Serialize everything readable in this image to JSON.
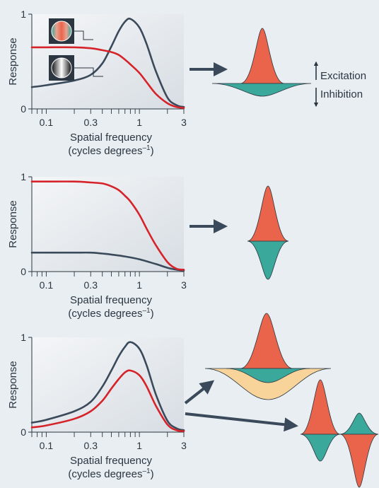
{
  "panel_labels": {
    "ylabel": "Response",
    "xlabel_line1": "Spatial frequency",
    "xlabel_line2": "(cycles degrees",
    "xlabel_sup": "–1",
    "xlabel_close": ")",
    "y_ticks": [
      "0",
      "1"
    ],
    "x_ticks": [
      "0.1",
      "0.3",
      "1",
      "3"
    ]
  },
  "legend": {
    "excitation": "Excitation",
    "inhibition": "Inhibition"
  },
  "colors": {
    "color_curve": "#d6232a",
    "luminance_curve": "#3a4a5a",
    "excitation": "#e9644a",
    "inhibition": "#3aa89a",
    "broad_inhibition": "#f9d49a",
    "arrow": "#3a4a5a"
  },
  "icons": [
    "color-grating-icon",
    "luminance-grating-icon"
  ],
  "chart_data": [
    {
      "type": "line",
      "x_scale": "log",
      "xlim": [
        0.07,
        3
      ],
      "ylim": [
        0,
        1
      ],
      "series": [
        {
          "color": "#3a4a5a",
          "x": [
            0.07,
            0.1,
            0.2,
            0.3,
            0.4,
            0.5,
            0.6,
            0.7,
            0.8,
            1.0,
            1.2,
            1.5,
            2.0,
            2.5,
            3.0
          ],
          "values": [
            0.23,
            0.25,
            0.3,
            0.36,
            0.48,
            0.66,
            0.82,
            0.92,
            0.95,
            0.86,
            0.68,
            0.4,
            0.12,
            0.04,
            0.02
          ]
        },
        {
          "color": "#d6232a",
          "x": [
            0.07,
            0.1,
            0.2,
            0.3,
            0.4,
            0.5,
            0.6,
            0.7,
            0.8,
            1.0,
            1.2,
            1.5,
            2.0,
            2.5,
            3.0
          ],
          "values": [
            0.65,
            0.65,
            0.65,
            0.64,
            0.62,
            0.6,
            0.57,
            0.52,
            0.47,
            0.38,
            0.28,
            0.16,
            0.06,
            0.02,
            0.01
          ]
        }
      ]
    },
    {
      "type": "line",
      "x_scale": "log",
      "xlim": [
        0.07,
        3
      ],
      "ylim": [
        0,
        1
      ],
      "series": [
        {
          "color": "#3a4a5a",
          "x": [
            0.07,
            0.1,
            0.2,
            0.3,
            0.4,
            0.5,
            0.7,
            1.0,
            1.5,
            2.0,
            2.5,
            3.0
          ],
          "values": [
            0.2,
            0.2,
            0.2,
            0.2,
            0.19,
            0.18,
            0.16,
            0.13,
            0.08,
            0.04,
            0.02,
            0.01
          ]
        },
        {
          "color": "#d6232a",
          "x": [
            0.07,
            0.1,
            0.2,
            0.3,
            0.4,
            0.5,
            0.6,
            0.7,
            0.8,
            1.0,
            1.2,
            1.5,
            2.0,
            2.5,
            3.0
          ],
          "values": [
            0.95,
            0.95,
            0.95,
            0.94,
            0.93,
            0.9,
            0.86,
            0.8,
            0.74,
            0.6,
            0.45,
            0.28,
            0.1,
            0.03,
            0.02
          ]
        }
      ]
    },
    {
      "type": "line",
      "x_scale": "log",
      "xlim": [
        0.07,
        3
      ],
      "ylim": [
        0,
        1
      ],
      "series": [
        {
          "color": "#3a4a5a",
          "x": [
            0.07,
            0.1,
            0.2,
            0.3,
            0.4,
            0.5,
            0.6,
            0.7,
            0.8,
            1.0,
            1.2,
            1.5,
            2.0,
            2.5,
            3.0
          ],
          "values": [
            0.1,
            0.13,
            0.22,
            0.32,
            0.48,
            0.65,
            0.8,
            0.9,
            0.95,
            0.88,
            0.7,
            0.4,
            0.12,
            0.04,
            0.02
          ]
        },
        {
          "color": "#d6232a",
          "x": [
            0.07,
            0.1,
            0.2,
            0.3,
            0.4,
            0.5,
            0.6,
            0.7,
            0.8,
            1.0,
            1.2,
            1.5,
            2.0,
            2.5,
            3.0
          ],
          "values": [
            0.05,
            0.07,
            0.14,
            0.22,
            0.33,
            0.46,
            0.56,
            0.63,
            0.65,
            0.6,
            0.48,
            0.28,
            0.08,
            0.02,
            0.01
          ]
        }
      ]
    }
  ]
}
